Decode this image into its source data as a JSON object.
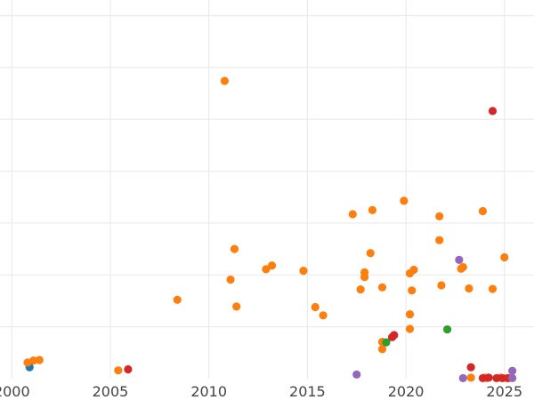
{
  "chart_data": {
    "type": "scatter",
    "title": "",
    "xlabel": "",
    "ylabel": "",
    "xlim": [
      1999.4,
      2026.5
    ],
    "ylim": [
      0,
      73
    ],
    "x_ticks": [
      2000,
      2005,
      2010,
      2015,
      2020,
      2025
    ],
    "y_gridlines": [
      10,
      20,
      30,
      40,
      50,
      60,
      70
    ],
    "y_tick_labels_visible": false,
    "grid": true,
    "legend": "none",
    "series": [
      {
        "color": "#1f77b4",
        "points": [
          {
            "x": 2000.9,
            "y": 2.2
          }
        ]
      },
      {
        "color": "#ff7f0e",
        "points": [
          {
            "x": 2000.8,
            "y": 3.1
          },
          {
            "x": 2001.1,
            "y": 3.5
          },
          {
            "x": 2001.4,
            "y": 3.6
          },
          {
            "x": 2005.4,
            "y": 1.6
          },
          {
            "x": 2008.4,
            "y": 15.2
          },
          {
            "x": 2010.8,
            "y": 57.4
          },
          {
            "x": 2011.1,
            "y": 19.1
          },
          {
            "x": 2011.3,
            "y": 25.0
          },
          {
            "x": 2011.4,
            "y": 13.9
          },
          {
            "x": 2012.9,
            "y": 21.1
          },
          {
            "x": 2013.2,
            "y": 21.8
          },
          {
            "x": 2014.8,
            "y": 20.8
          },
          {
            "x": 2015.4,
            "y": 13.8
          },
          {
            "x": 2015.8,
            "y": 12.2
          },
          {
            "x": 2017.3,
            "y": 31.7
          },
          {
            "x": 2017.7,
            "y": 17.2
          },
          {
            "x": 2017.9,
            "y": 20.5
          },
          {
            "x": 2017.9,
            "y": 19.6
          },
          {
            "x": 2018.2,
            "y": 24.2
          },
          {
            "x": 2018.3,
            "y": 32.5
          },
          {
            "x": 2018.8,
            "y": 7.1
          },
          {
            "x": 2018.8,
            "y": 17.6
          },
          {
            "x": 2018.8,
            "y": 5.7
          },
          {
            "x": 2019.9,
            "y": 34.3
          },
          {
            "x": 2020.2,
            "y": 20.3
          },
          {
            "x": 2020.2,
            "y": 12.4
          },
          {
            "x": 2020.2,
            "y": 9.6
          },
          {
            "x": 2020.3,
            "y": 17.0
          },
          {
            "x": 2020.4,
            "y": 21.0
          },
          {
            "x": 2021.7,
            "y": 31.3
          },
          {
            "x": 2021.7,
            "y": 26.7
          },
          {
            "x": 2021.8,
            "y": 18.0
          },
          {
            "x": 2022.8,
            "y": 21.2
          },
          {
            "x": 2022.9,
            "y": 21.5
          },
          {
            "x": 2023.2,
            "y": 17.4
          },
          {
            "x": 2023.3,
            "y": 0.2
          },
          {
            "x": 2023.9,
            "y": 32.3
          },
          {
            "x": 2024.0,
            "y": 0.2
          },
          {
            "x": 2024.1,
            "y": 0.1
          },
          {
            "x": 2024.4,
            "y": 17.3
          },
          {
            "x": 2024.8,
            "y": 0.2
          },
          {
            "x": 2025.0,
            "y": 23.4
          },
          {
            "x": 2025.1,
            "y": 0.1
          }
        ]
      },
      {
        "color": "#2ca02c",
        "points": [
          {
            "x": 2019.0,
            "y": 7.0
          },
          {
            "x": 2022.1,
            "y": 9.5
          }
        ]
      },
      {
        "color": "#d62728",
        "points": [
          {
            "x": 2005.9,
            "y": 1.8
          },
          {
            "x": 2019.3,
            "y": 8.0
          },
          {
            "x": 2019.4,
            "y": 8.4
          },
          {
            "x": 2023.3,
            "y": 2.2
          },
          {
            "x": 2023.9,
            "y": 0.1
          },
          {
            "x": 2024.2,
            "y": 0.2
          },
          {
            "x": 2024.4,
            "y": 51.6
          },
          {
            "x": 2024.6,
            "y": 0.1
          },
          {
            "x": 2024.9,
            "y": 0.1
          },
          {
            "x": 2025.2,
            "y": 0.1
          }
        ]
      },
      {
        "color": "#9467bd",
        "points": [
          {
            "x": 2017.5,
            "y": 0.8
          },
          {
            "x": 2022.7,
            "y": 22.9
          },
          {
            "x": 2022.9,
            "y": 0.1
          },
          {
            "x": 2025.4,
            "y": 1.5
          },
          {
            "x": 2025.4,
            "y": 0.1
          }
        ]
      }
    ]
  }
}
